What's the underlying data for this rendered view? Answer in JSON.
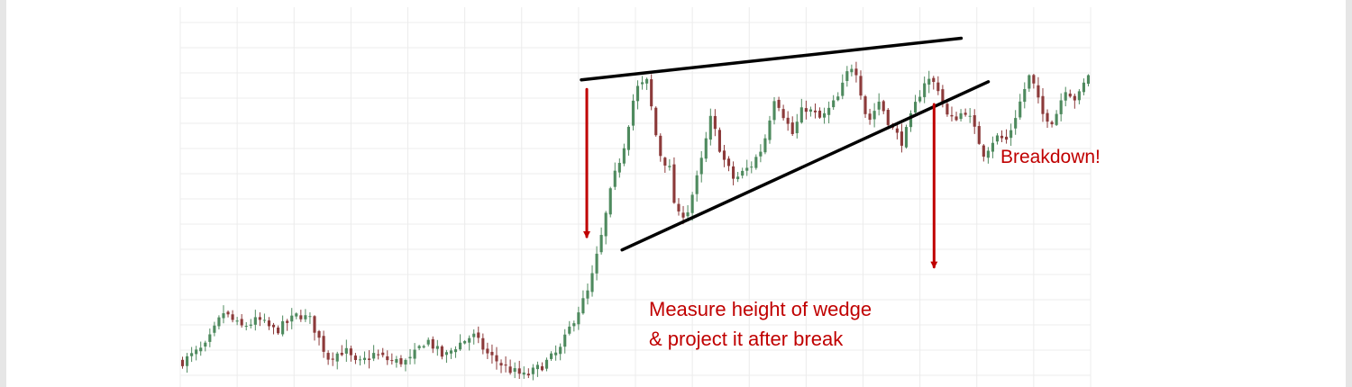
{
  "chart_data": {
    "type": "candlestick",
    "title": "",
    "xlabel": "",
    "ylabel": "",
    "grid": true,
    "pattern": "rising wedge",
    "candle_count": 200,
    "close_path": [
      [
        0,
        14
      ],
      [
        8,
        22
      ],
      [
        14,
        40
      ],
      [
        20,
        32
      ],
      [
        26,
        36
      ],
      [
        32,
        30
      ],
      [
        40,
        39
      ],
      [
        44,
        36
      ],
      [
        50,
        16
      ],
      [
        56,
        20
      ],
      [
        60,
        12
      ],
      [
        66,
        18
      ],
      [
        72,
        14
      ],
      [
        78,
        14
      ],
      [
        84,
        26
      ],
      [
        90,
        16
      ],
      [
        94,
        22
      ],
      [
        100,
        28
      ],
      [
        105,
        18
      ],
      [
        112,
        10
      ],
      [
        118,
        6
      ],
      [
        124,
        12
      ],
      [
        130,
        20
      ],
      [
        134,
        34
      ],
      [
        140,
        52
      ],
      [
        144,
        78
      ],
      [
        148,
        108
      ],
      [
        152,
        128
      ],
      [
        156,
        158
      ],
      [
        160,
        162
      ],
      [
        164,
        125
      ],
      [
        168,
        115
      ],
      [
        170,
        90
      ],
      [
        174,
        94
      ],
      [
        178,
        115
      ],
      [
        182,
        143
      ],
      [
        186,
        122
      ],
      [
        190,
        110
      ],
      [
        196,
        118
      ],
      [
        200,
        128
      ],
      [
        204,
        155
      ],
      [
        210,
        134
      ],
      [
        214,
        149
      ],
      [
        220,
        142
      ],
      [
        226,
        154
      ],
      [
        230,
        171
      ],
      [
        232,
        168
      ],
      [
        236,
        140
      ],
      [
        240,
        152
      ],
      [
        244,
        138
      ],
      [
        248,
        130
      ],
      [
        252,
        148
      ],
      [
        256,
        164
      ],
      [
        260,
        160
      ],
      [
        264,
        141
      ],
      [
        270,
        147
      ],
      [
        276,
        124
      ],
      [
        280,
        133
      ],
      [
        284,
        131
      ],
      [
        290,
        158
      ],
      [
        292,
        166
      ],
      [
        296,
        145
      ],
      [
        300,
        141
      ],
      [
        304,
        159
      ],
      [
        308,
        152
      ],
      [
        312,
        166
      ]
    ],
    "wedge_upper_line": [
      [
        160,
        163
      ],
      [
        300,
        185
      ]
    ],
    "wedge_lower_line": [
      [
        175,
        73
      ],
      [
        310,
        162
      ]
    ],
    "wedge_height_arrow": [
      [
        162,
        158
      ],
      [
        162,
        80
      ]
    ],
    "projection_arrow": [
      [
        290,
        150
      ],
      [
        290,
        64
      ]
    ],
    "price_range": [
      0,
      200
    ]
  },
  "annotations": {
    "breakdown": "Breakdown!",
    "measure_line1": "Measure height of wedge",
    "measure_line2": "& project it after break"
  },
  "colors": {
    "bull": "#4e8a5e",
    "bear": "#8c3a3a",
    "trendline": "#000000",
    "arrow": "#c00000",
    "annotation_text": "#c00000",
    "grid": "#ececec"
  }
}
